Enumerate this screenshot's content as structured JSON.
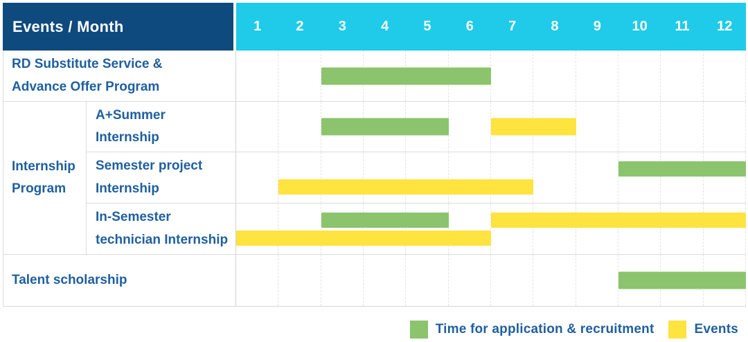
{
  "colors": {
    "header_bg": "#0E4A7E",
    "months_bg": "#1FCBE8",
    "green": "#8BC46C",
    "yellow": "#FFE33F",
    "text_blue": "#1F5FA0"
  },
  "header": {
    "title": "Events / Month",
    "months": [
      "1",
      "2",
      "3",
      "4",
      "5",
      "6",
      "7",
      "8",
      "9",
      "10",
      "11",
      "12"
    ]
  },
  "group_label": "Internship\nProgram",
  "rows": [
    {
      "id": "rd-substitute",
      "label": "RD Substitute Service &\nAdvance Offer Program",
      "bars": [
        {
          "color": "green",
          "start": 3,
          "end": 6,
          "track": "center"
        }
      ]
    },
    {
      "id": "a-summer",
      "label": "A+Summer\nInternship",
      "bars": [
        {
          "color": "green",
          "start": 3,
          "end": 5,
          "track": "center"
        },
        {
          "color": "yellow",
          "start": 7,
          "end": 8,
          "track": "center"
        }
      ]
    },
    {
      "id": "semester-project",
      "label": "Semester project\nInternship",
      "bars": [
        {
          "color": "green",
          "start": 10,
          "end": 12,
          "track": "upper"
        },
        {
          "color": "yellow",
          "start": 2,
          "end": 7,
          "track": "lower"
        }
      ]
    },
    {
      "id": "in-semester",
      "label": "In-Semester\ntechnician Internship",
      "bars": [
        {
          "color": "green",
          "start": 3,
          "end": 5,
          "track": "upper"
        },
        {
          "color": "yellow",
          "start": 7,
          "end": 12,
          "track": "upper"
        },
        {
          "color": "yellow",
          "start": 1,
          "end": 6,
          "track": "lower"
        }
      ]
    },
    {
      "id": "talent",
      "label": "Talent scholarship",
      "bars": [
        {
          "color": "green",
          "start": 10,
          "end": 12,
          "track": "center"
        }
      ]
    }
  ],
  "legend": [
    {
      "color": "green",
      "label": "Time for application & recruitment"
    },
    {
      "color": "yellow",
      "label": "Events"
    }
  ],
  "chart_data": {
    "type": "bar",
    "subtype": "gantt",
    "title": "Events / Month",
    "xlabel": "Month",
    "x_ticks": [
      1,
      2,
      3,
      4,
      5,
      6,
      7,
      8,
      9,
      10,
      11,
      12
    ],
    "x_range": [
      1,
      12
    ],
    "grid": true,
    "legend_position": "bottom-right",
    "series_meaning": {
      "green": "Time for application & recruitment",
      "yellow": "Events"
    },
    "rows": [
      {
        "event": "RD Substitute Service & Advance Offer Program",
        "group": null,
        "spans": [
          {
            "kind": "application_recruitment",
            "start_month": 3,
            "end_month": 6
          }
        ]
      },
      {
        "event": "A+Summer Internship",
        "group": "Internship Program",
        "spans": [
          {
            "kind": "application_recruitment",
            "start_month": 3,
            "end_month": 5
          },
          {
            "kind": "events",
            "start_month": 7,
            "end_month": 8
          }
        ]
      },
      {
        "event": "Semester project Internship",
        "group": "Internship Program",
        "spans": [
          {
            "kind": "application_recruitment",
            "start_month": 10,
            "end_month": 12
          },
          {
            "kind": "events",
            "start_month": 2,
            "end_month": 7
          }
        ]
      },
      {
        "event": "In-Semester technician Internship",
        "group": "Internship Program",
        "spans": [
          {
            "kind": "application_recruitment",
            "start_month": 3,
            "end_month": 5
          },
          {
            "kind": "events",
            "start_month": 7,
            "end_month": 12
          },
          {
            "kind": "events",
            "start_month": 1,
            "end_month": 6
          }
        ]
      },
      {
        "event": "Talent scholarship",
        "group": null,
        "spans": [
          {
            "kind": "application_recruitment",
            "start_month": 10,
            "end_month": 12
          }
        ]
      }
    ]
  }
}
